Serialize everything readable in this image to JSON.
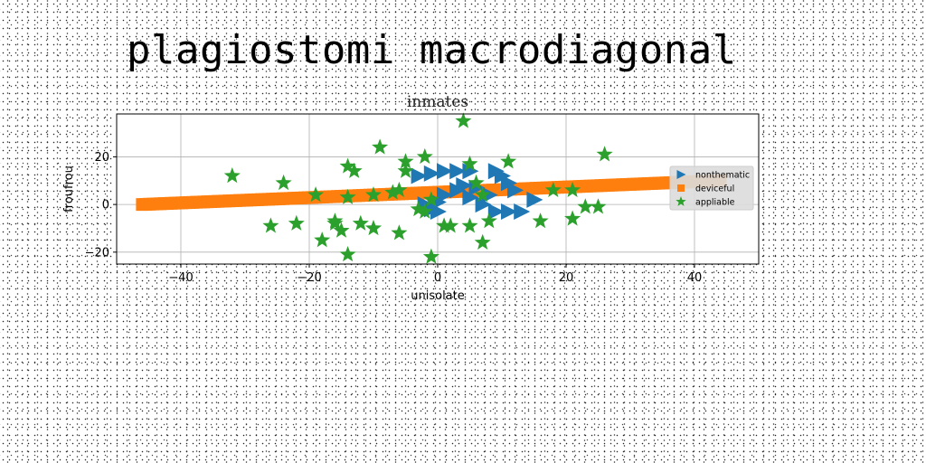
{
  "page_title": "plagiostomi macrodiagonal",
  "chart_data": {
    "type": "scatter",
    "title": "inmates",
    "xlabel": "unisolate",
    "ylabel": "froufrou",
    "xlim": [
      -50,
      50
    ],
    "ylim": [
      -25,
      38
    ],
    "xticks": [
      -40,
      -20,
      0,
      20,
      40
    ],
    "yticks": [
      -20,
      0,
      20
    ],
    "grid": true,
    "legend_position": "right",
    "series": [
      {
        "name": "nonthematic",
        "marker": "triangle-right",
        "color": "#1f77b4",
        "points": [
          [
            -3,
            12
          ],
          [
            -1,
            13
          ],
          [
            1,
            14
          ],
          [
            3,
            14
          ],
          [
            5,
            14
          ],
          [
            6,
            7
          ],
          [
            9,
            14
          ],
          [
            10,
            12
          ],
          [
            11,
            9
          ],
          [
            12,
            6
          ],
          [
            13,
            -3
          ],
          [
            11,
            -3
          ],
          [
            9,
            -3
          ],
          [
            7,
            0
          ],
          [
            5,
            3
          ],
          [
            3,
            6
          ],
          [
            1,
            4
          ],
          [
            0,
            1
          ],
          [
            -1,
            -2
          ],
          [
            -2,
            0
          ],
          [
            15,
            2
          ],
          [
            0,
            -3
          ],
          [
            4,
            8
          ],
          [
            8,
            4
          ]
        ]
      },
      {
        "name": "deviceful",
        "marker": "square",
        "color": "#ff7f0e",
        "line": {
          "x0": -46,
          "y0": 0,
          "x1": 44,
          "y1": 10
        }
      },
      {
        "name": "appliable",
        "marker": "star",
        "color": "#2ca02c",
        "points": [
          [
            -32,
            12
          ],
          [
            -26,
            -9
          ],
          [
            -24,
            9
          ],
          [
            -22,
            -8
          ],
          [
            -19,
            4
          ],
          [
            -18,
            -15
          ],
          [
            -16,
            -7
          ],
          [
            -16,
            -8
          ],
          [
            -15,
            -11
          ],
          [
            -14,
            3
          ],
          [
            -14,
            16
          ],
          [
            -14,
            -21
          ],
          [
            -13,
            14
          ],
          [
            -12,
            -8
          ],
          [
            -10,
            4
          ],
          [
            -10,
            -10
          ],
          [
            -9,
            24
          ],
          [
            -7,
            5
          ],
          [
            -6,
            6
          ],
          [
            -6,
            -12
          ],
          [
            -5,
            14
          ],
          [
            -5,
            18
          ],
          [
            -3,
            -2
          ],
          [
            -2,
            -3
          ],
          [
            -2,
            20
          ],
          [
            -1,
            2
          ],
          [
            -1,
            -22
          ],
          [
            1,
            -9
          ],
          [
            2,
            -9
          ],
          [
            4,
            35
          ],
          [
            5,
            17
          ],
          [
            5,
            -9
          ],
          [
            6,
            9
          ],
          [
            7,
            4
          ],
          [
            7,
            -16
          ],
          [
            8,
            -7
          ],
          [
            11,
            18
          ],
          [
            16,
            -7
          ],
          [
            18,
            6
          ],
          [
            21,
            6
          ],
          [
            21,
            -6
          ],
          [
            23,
            -1
          ],
          [
            25,
            -1
          ],
          [
            26,
            21
          ]
        ]
      }
    ]
  }
}
